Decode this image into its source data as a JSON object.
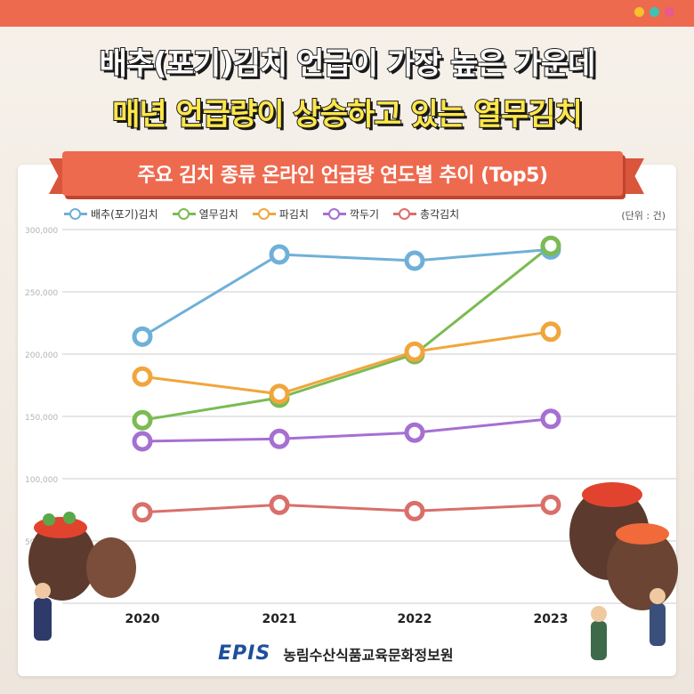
{
  "headline": {
    "line1": "배추(포기)김치 언급이 가장 높은 가운데",
    "line2": "매년 언급량이 상승하고 있는 열무김치"
  },
  "window_dots": [
    "#f5c12c",
    "#3fc1b5",
    "#e65a8c"
  ],
  "unit": "(단위 : 건)",
  "footer": {
    "logo": "EPIS",
    "org": "농림수산식품교육문화정보원"
  },
  "chart_data": {
    "type": "line",
    "title": "주요 김치 종류 온라인 언급량 연도별 추이 (Top5)",
    "categories": [
      "2020",
      "2021",
      "2022",
      "2023"
    ],
    "ylim": [
      0,
      300000
    ],
    "yticks": [
      "300,000",
      "250,000",
      "200,000",
      "150,000",
      "100,000",
      "50,000",
      "0"
    ],
    "ytick_values": [
      300000,
      250000,
      200000,
      150000,
      100000,
      50000,
      0
    ],
    "legend_position": "top-left",
    "grid": true,
    "series": [
      {
        "name": "배추(포기)김치",
        "color": "#6fb0d8",
        "values": [
          214000,
          280000,
          275000,
          284000
        ]
      },
      {
        "name": "열무김치",
        "color": "#7bbb53",
        "values": [
          147000,
          165000,
          200000,
          287000
        ]
      },
      {
        "name": "파김치",
        "color": "#f0a63d",
        "values": [
          182000,
          168000,
          202000,
          218000
        ]
      },
      {
        "name": "깍두기",
        "color": "#a66fd2",
        "values": [
          130000,
          132000,
          137000,
          148000
        ]
      },
      {
        "name": "총각김치",
        "color": "#d96f6a",
        "values": [
          73000,
          79000,
          74000,
          79000
        ]
      }
    ]
  }
}
